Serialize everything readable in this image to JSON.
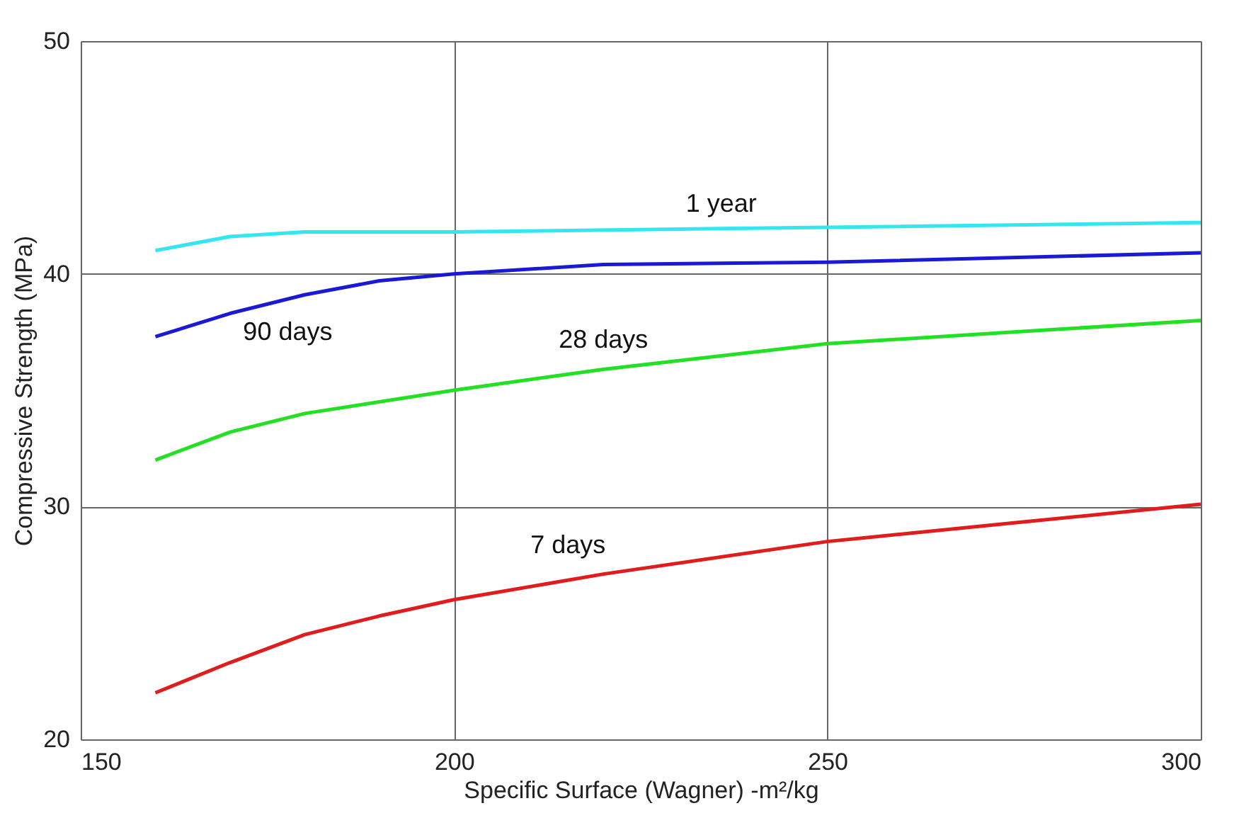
{
  "chart_data": {
    "type": "line",
    "xlabel": "Specific Surface (Wagner) -m²/kg",
    "ylabel": "Compressive Strength (MPa)",
    "xlim": [
      150,
      300
    ],
    "xticks": [
      150,
      200,
      250,
      300
    ],
    "ylim": [
      20,
      50
    ],
    "yticks": [
      20,
      30,
      40,
      50
    ],
    "grid": true,
    "marker": "none",
    "line_style": "solid",
    "series": [
      {
        "name": "1 year",
        "color": "#33e6f0",
        "x": [
          160,
          170,
          180,
          200,
          250,
          300
        ],
        "values": [
          41.0,
          41.6,
          41.8,
          41.8,
          42.0,
          42.2
        ]
      },
      {
        "name": "90 days",
        "color": "#1a1ad6",
        "x": [
          160,
          170,
          180,
          190,
          200,
          220,
          250,
          300
        ],
        "values": [
          37.3,
          38.3,
          39.1,
          39.7,
          40.0,
          40.4,
          40.5,
          40.9
        ]
      },
      {
        "name": "28 days",
        "color": "#22e022",
        "x": [
          160,
          170,
          180,
          200,
          220,
          250,
          275,
          300
        ],
        "values": [
          32.0,
          33.2,
          34.0,
          35.0,
          35.9,
          37.0,
          37.5,
          38.0
        ]
      },
      {
        "name": "7 days",
        "color": "#e01c1c",
        "x": [
          160,
          170,
          180,
          190,
          200,
          220,
          250,
          275,
          300
        ],
        "values": [
          22.0,
          23.3,
          24.5,
          25.3,
          26.0,
          27.1,
          28.5,
          29.3,
          30.1
        ]
      }
    ]
  }
}
